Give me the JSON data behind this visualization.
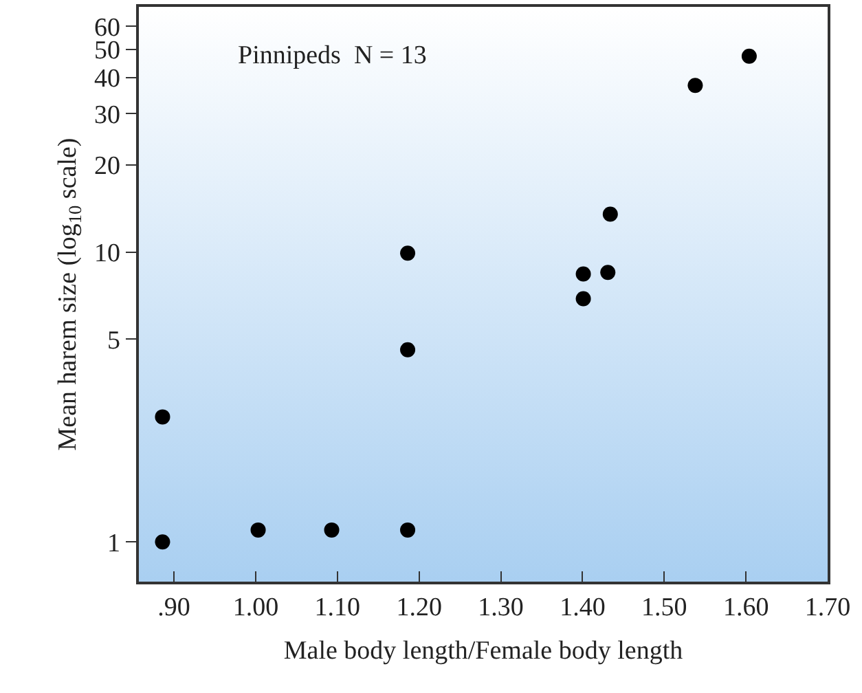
{
  "chart_data": {
    "type": "scatter",
    "xlabel": "Male body length/Female body length",
    "ylabel": "Mean harem size (log$_{10}$ scale)",
    "annotations": [
      "Pinnipeds  N = 13"
    ],
    "x": [
      0.886,
      0.886,
      1.003,
      1.093,
      1.186,
      1.186,
      1.186,
      1.401,
      1.401,
      1.431,
      1.434,
      1.538,
      1.604
    ],
    "series": [
      {
        "color": "#000000",
        "values": [
          2.7,
          1.0,
          1.1,
          1.1,
          1.1,
          4.6,
          9.9,
          6.9,
          8.4,
          8.5,
          13.5,
          37.5,
          47.3
        ]
      }
    ],
    "log": "y",
    "xlim": [
      0.857,
      1.7
    ],
    "ylim": [
      0.73,
      70
    ],
    "xticks": [
      {
        "value": 0.9,
        "label": ".90"
      },
      {
        "value": 1.0,
        "label": "1.00"
      },
      {
        "value": 1.1,
        "label": "1.10"
      },
      {
        "value": 1.2,
        "label": "1.20"
      },
      {
        "value": 1.3,
        "label": "1.30"
      },
      {
        "value": 1.4,
        "label": "1.40"
      },
      {
        "value": 1.5,
        "label": "1.50"
      },
      {
        "value": 1.6,
        "label": "1.60"
      },
      {
        "value": 1.7,
        "label": "1.70"
      }
    ],
    "yticks": [
      1,
      5,
      10,
      20,
      30,
      40,
      50,
      60
    ],
    "grid": false,
    "marker": "circle"
  }
}
